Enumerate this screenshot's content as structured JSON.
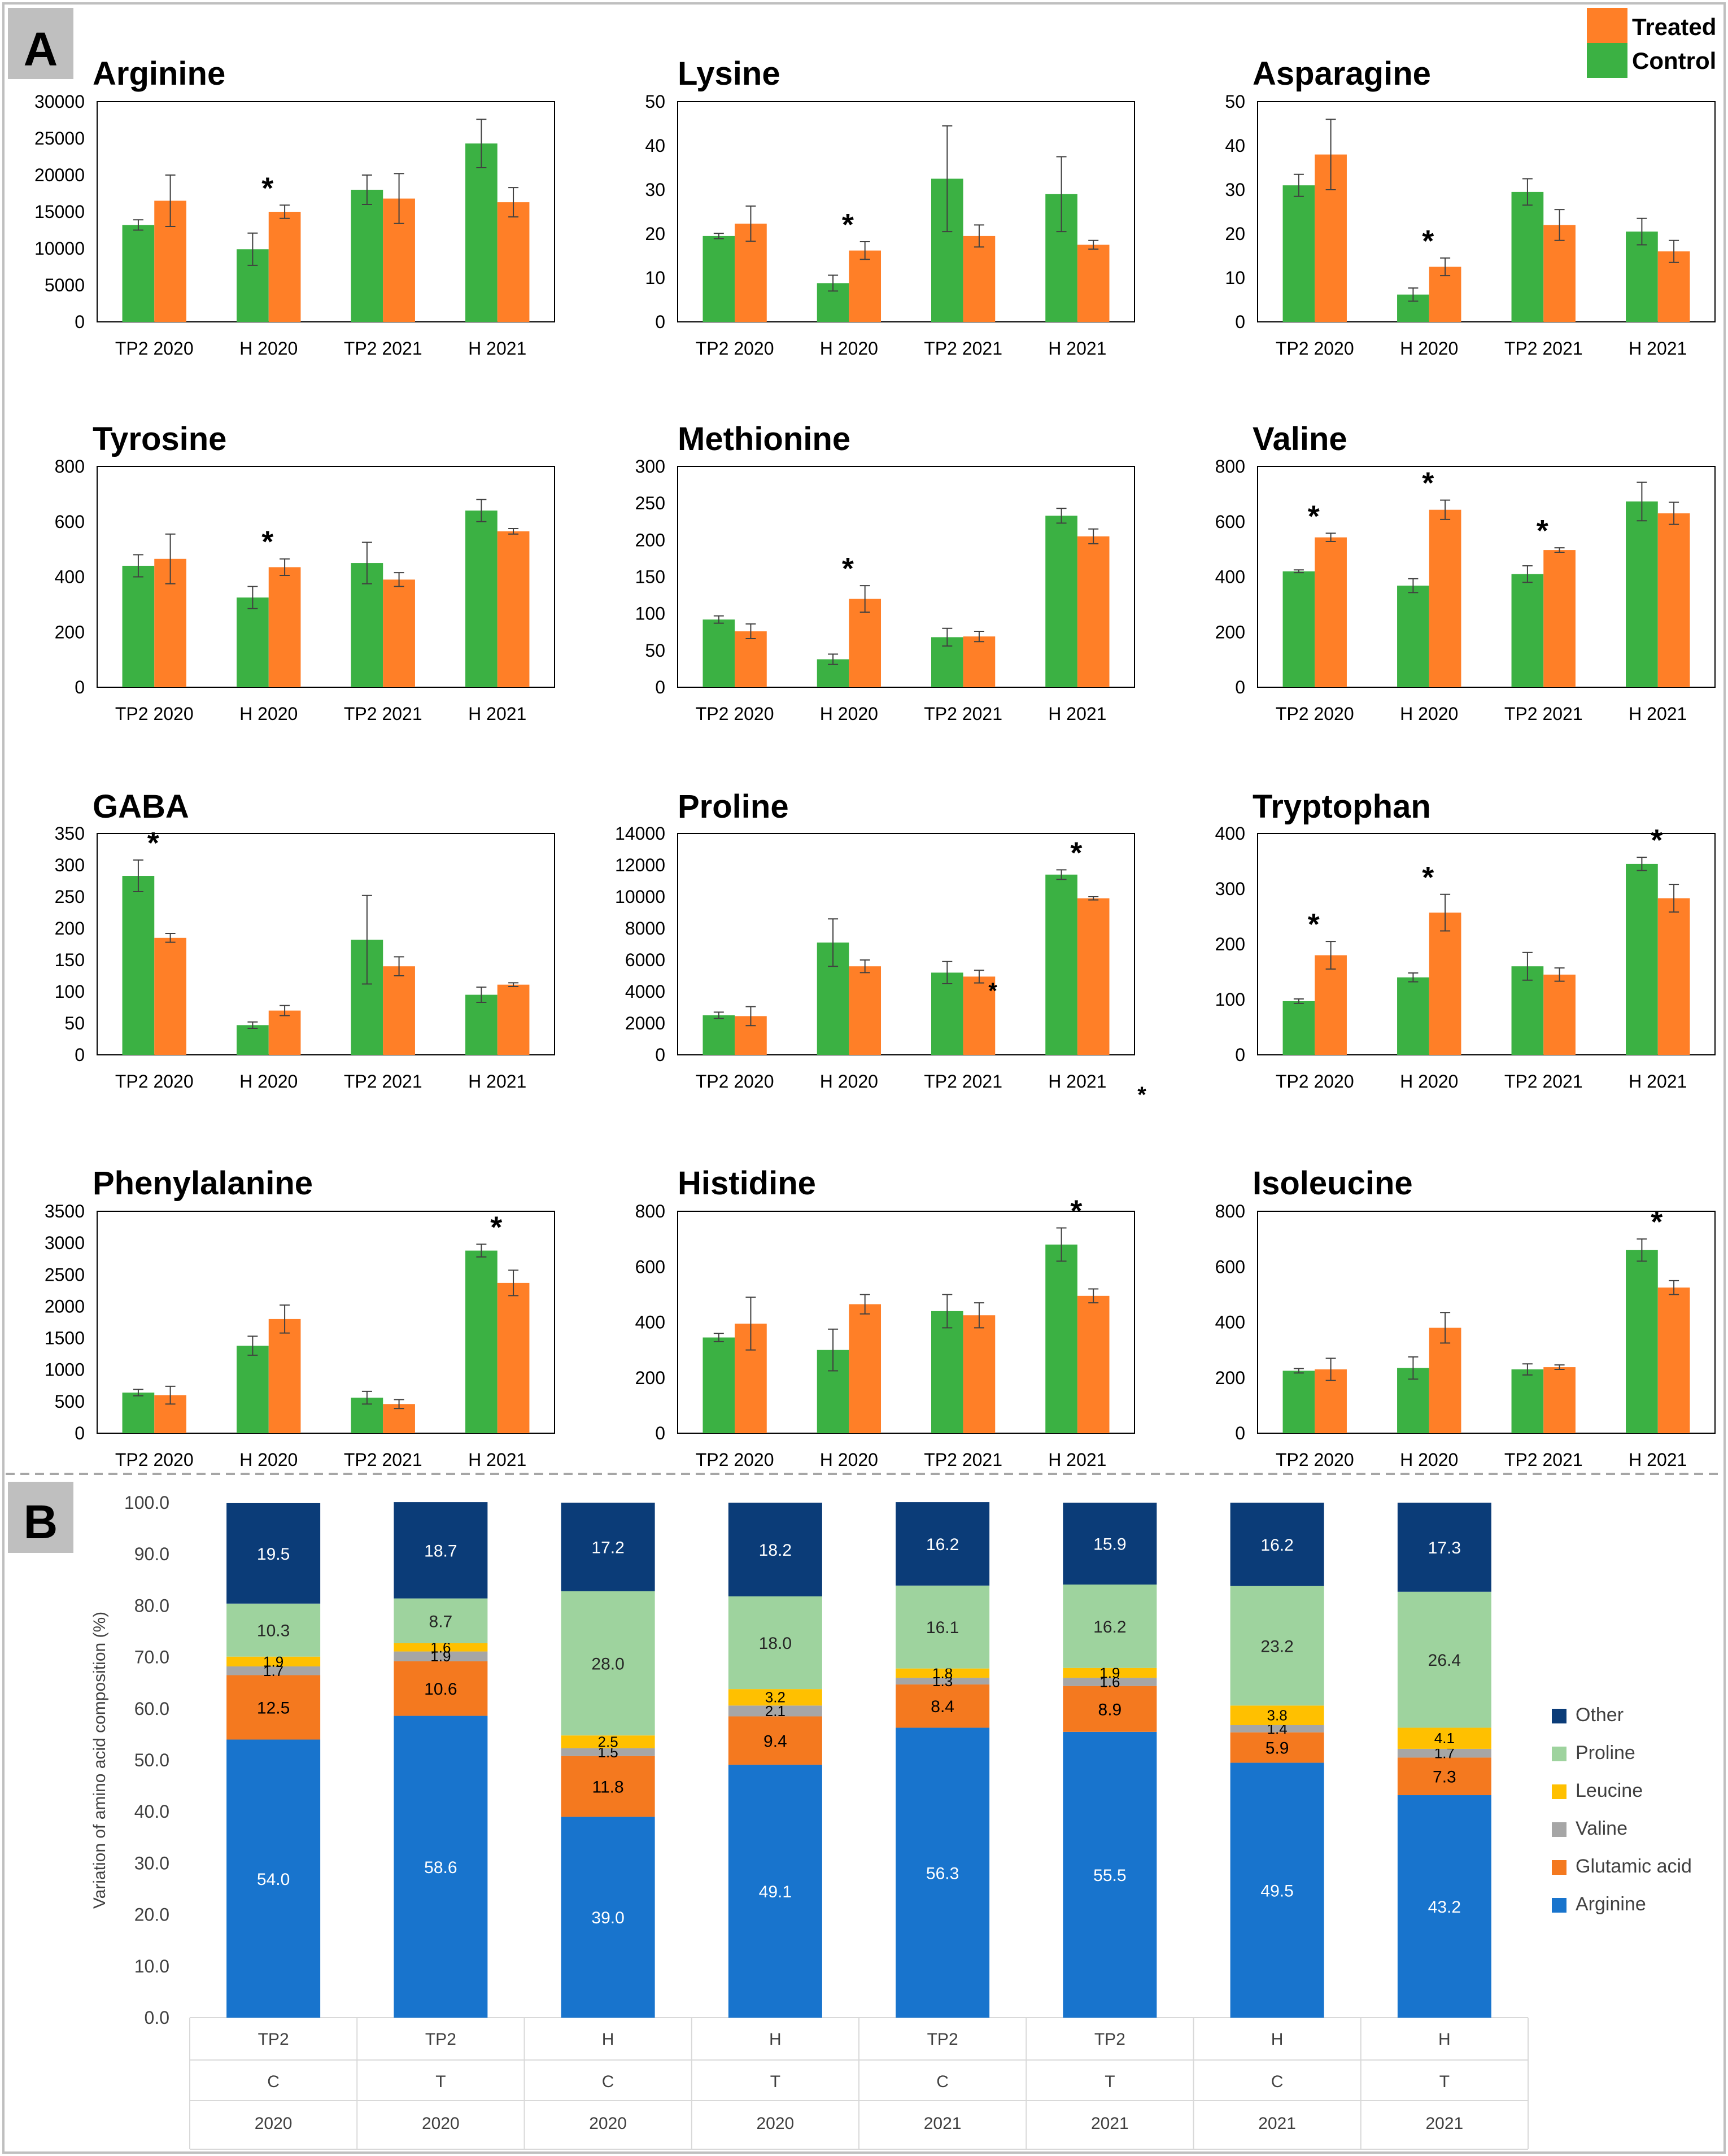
{
  "panel_labels": {
    "a": "A",
    "b": "B"
  },
  "legend_a": {
    "treated": "Treated",
    "control": "Control"
  },
  "colors": {
    "green": "#3BB143",
    "orange": "#FF7F27",
    "other": "#0B3C78",
    "proline": "#9ED39E",
    "leucine": "#FFC000",
    "valine": "#A6A6A6",
    "glutamic": "#F4791F",
    "arginine": "#1874CD"
  },
  "chart_data": [
    {
      "type": "bar",
      "title": "Arginine",
      "categories": [
        "TP2 2020",
        "H 2020",
        "TP2 2021",
        "H 2021"
      ],
      "ylim": [
        0,
        30000
      ],
      "yticks": [
        0,
        5000,
        10000,
        15000,
        20000,
        25000,
        30000
      ],
      "series": [
        {
          "name": "Control",
          "values": [
            13200,
            9900,
            18000,
            24300
          ],
          "errors": [
            700,
            2200,
            2000,
            3300
          ]
        },
        {
          "name": "Treated",
          "values": [
            16500,
            15000,
            16800,
            16300
          ],
          "errors": [
            3500,
            900,
            3400,
            2000
          ]
        }
      ],
      "significant": [
        false,
        true,
        false,
        false
      ],
      "sig_mark": "*"
    },
    {
      "type": "bar",
      "title": "Lysine",
      "categories": [
        "TP2 2020",
        "H 2020",
        "TP2 2021",
        "H 2021"
      ],
      "ylim": [
        0,
        50
      ],
      "yticks": [
        0,
        10,
        20,
        30,
        40,
        50
      ],
      "series": [
        {
          "name": "Control",
          "values": [
            19.5,
            8.8,
            32.5,
            29
          ],
          "errors": [
            0.6,
            1.8,
            12,
            8.5
          ]
        },
        {
          "name": "Treated",
          "values": [
            22.3,
            16.2,
            19.5,
            17.5
          ],
          "errors": [
            4,
            2,
            2.5,
            1
          ]
        }
      ],
      "significant": [
        false,
        true,
        false,
        false
      ],
      "sig_mark": "*"
    },
    {
      "type": "bar",
      "title": "Asparagine",
      "categories": [
        "TP2 2020",
        "H 2020",
        "TP2 2021",
        "H 2021"
      ],
      "ylim": [
        0,
        50
      ],
      "yticks": [
        0,
        10,
        20,
        30,
        40,
        50
      ],
      "series": [
        {
          "name": "Control",
          "values": [
            31,
            6.2,
            29.5,
            20.5
          ],
          "errors": [
            2.5,
            1.5,
            3,
            3
          ]
        },
        {
          "name": "Treated",
          "values": [
            38,
            12.5,
            22,
            16
          ],
          "errors": [
            8,
            2,
            3.5,
            2.5
          ]
        }
      ],
      "significant": [
        false,
        true,
        false,
        false
      ],
      "sig_mark": "*"
    },
    {
      "type": "bar",
      "title": "Tyrosine",
      "categories": [
        "TP2 2020",
        "H 2020",
        "TP2 2021",
        "H 2021"
      ],
      "ylim": [
        0,
        800
      ],
      "yticks": [
        0,
        200,
        400,
        600,
        800
      ],
      "series": [
        {
          "name": "Control",
          "values": [
            440,
            325,
            450,
            640
          ],
          "errors": [
            40,
            40,
            75,
            40
          ]
        },
        {
          "name": "Treated",
          "values": [
            465,
            435,
            390,
            565
          ],
          "errors": [
            90,
            30,
            25,
            10
          ]
        }
      ],
      "significant": [
        false,
        true,
        false,
        false
      ],
      "sig_mark": "*"
    },
    {
      "type": "bar",
      "title": "Methionine",
      "categories": [
        "TP2 2020",
        "H 2020",
        "TP2 2021",
        "H 2021"
      ],
      "ylim": [
        0,
        300
      ],
      "yticks": [
        0,
        50,
        100,
        150,
        200,
        250,
        300
      ],
      "series": [
        {
          "name": "Control",
          "values": [
            92,
            38,
            68,
            233
          ],
          "errors": [
            5,
            7,
            12,
            10
          ]
        },
        {
          "name": "Treated",
          "values": [
            76,
            120,
            69,
            205
          ],
          "errors": [
            10,
            18,
            7,
            10
          ]
        }
      ],
      "significant": [
        false,
        true,
        false,
        false
      ],
      "sig_mark": "*"
    },
    {
      "type": "bar",
      "title": "Valine",
      "categories": [
        "TP2 2020",
        "H 2020",
        "TP2 2021",
        "H 2021"
      ],
      "ylim": [
        0,
        800
      ],
      "yticks": [
        0,
        200,
        400,
        600,
        800
      ],
      "series": [
        {
          "name": "Control",
          "values": [
            420,
            368,
            410,
            673
          ],
          "errors": [
            5,
            25,
            30,
            70
          ]
        },
        {
          "name": "Treated",
          "values": [
            543,
            643,
            497,
            630
          ],
          "errors": [
            15,
            35,
            8,
            40
          ]
        }
      ],
      "significant": [
        true,
        true,
        true,
        false
      ],
      "sig_mark": "*"
    },
    {
      "type": "bar",
      "title": "GABA",
      "categories": [
        "TP2 2020",
        "H 2020",
        "TP2 2021",
        "H 2021"
      ],
      "ylim": [
        0,
        350
      ],
      "yticks": [
        0,
        50,
        100,
        150,
        200,
        250,
        300,
        350
      ],
      "series": [
        {
          "name": "Control",
          "values": [
            283,
            47,
            182,
            95
          ],
          "errors": [
            25,
            5,
            70,
            12
          ]
        },
        {
          "name": "Treated",
          "values": [
            185,
            70,
            140,
            111
          ],
          "errors": [
            7,
            8,
            15,
            3
          ]
        }
      ],
      "significant": [
        true,
        false,
        false,
        false
      ],
      "sig_mark": "*"
    },
    {
      "type": "bar",
      "title": "Proline",
      "categories": [
        "TP2 2020",
        "H 2020",
        "TP2 2021",
        "H 2021"
      ],
      "ylim": [
        0,
        14000
      ],
      "yticks": [
        0,
        2000,
        4000,
        6000,
        8000,
        10000,
        12000,
        14000
      ],
      "series": [
        {
          "name": "Control",
          "values": [
            2500,
            7100,
            5200,
            11400
          ],
          "errors": [
            200,
            1500,
            700,
            300
          ]
        },
        {
          "name": "Treated",
          "values": [
            2450,
            5600,
            4950,
            9900
          ],
          "errors": [
            600,
            400,
            400,
            100
          ]
        }
      ],
      "significant": [
        false,
        false,
        false,
        true
      ],
      "sig_mark": "*"
    },
    {
      "type": "bar",
      "title": "Tryptophan",
      "categories": [
        "TP2 2020",
        "H 2020",
        "TP2 2021",
        "H 2021"
      ],
      "ylim": [
        0,
        400
      ],
      "yticks": [
        0,
        100,
        200,
        300,
        400
      ],
      "series": [
        {
          "name": "Control",
          "values": [
            97,
            140,
            160,
            345
          ],
          "errors": [
            4,
            8,
            25,
            12
          ]
        },
        {
          "name": "Treated",
          "values": [
            180,
            257,
            145,
            283
          ],
          "errors": [
            25,
            33,
            12,
            25
          ]
        }
      ],
      "significant": [
        true,
        true,
        false,
        true
      ],
      "sig_mark": "*"
    },
    {
      "type": "bar",
      "title": "Phenylalanine",
      "categories": [
        "TP2 2020",
        "H 2020",
        "TP2 2021",
        "H 2021"
      ],
      "ylim": [
        0,
        3500
      ],
      "yticks": [
        0,
        500,
        1000,
        1500,
        2000,
        2500,
        3000,
        3500
      ],
      "series": [
        {
          "name": "Control",
          "values": [
            640,
            1380,
            560,
            2880
          ],
          "errors": [
            50,
            150,
            100,
            100
          ]
        },
        {
          "name": "Treated",
          "values": [
            600,
            1800,
            460,
            2370
          ],
          "errors": [
            140,
            220,
            70,
            200
          ]
        }
      ],
      "significant": [
        false,
        false,
        false,
        true
      ],
      "sig_mark": "*"
    },
    {
      "type": "bar",
      "title": "Histidine",
      "categories": [
        "TP2 2020",
        "H 2020",
        "TP2 2021",
        "H 2021"
      ],
      "ylim": [
        0,
        800
      ],
      "yticks": [
        0,
        200,
        400,
        600,
        800
      ],
      "series": [
        {
          "name": "Control",
          "values": [
            345,
            300,
            440,
            680
          ],
          "errors": [
            15,
            75,
            60,
            60
          ]
        },
        {
          "name": "Treated",
          "values": [
            395,
            465,
            425,
            495
          ],
          "errors": [
            95,
            35,
            45,
            25
          ]
        }
      ],
      "significant": [
        false,
        false,
        false,
        true
      ],
      "sig_mark": "*"
    },
    {
      "type": "bar",
      "title": "Isoleucine",
      "categories": [
        "TP2 2020",
        "H 2020",
        "TP2 2021",
        "H 2021"
      ],
      "ylim": [
        0,
        800
      ],
      "yticks": [
        0,
        200,
        400,
        600,
        800
      ],
      "series": [
        {
          "name": "Control",
          "values": [
            225,
            235,
            230,
            660
          ],
          "errors": [
            8,
            40,
            20,
            40
          ]
        },
        {
          "name": "Treated",
          "values": [
            230,
            380,
            238,
            525
          ],
          "errors": [
            40,
            55,
            8,
            25
          ]
        }
      ],
      "significant": [
        false,
        false,
        false,
        true
      ],
      "sig_mark": "*"
    },
    {
      "type": "stacked-bar",
      "title": "",
      "ylabel": "Variation of amino acid composition (%)",
      "ylim": [
        0,
        100
      ],
      "ytick_labels": [
        "0.0",
        "10.0",
        "20.0",
        "30.0",
        "40.0",
        "50.0",
        "60.0",
        "70.0",
        "80.0",
        "90.0",
        "100.0"
      ],
      "categories": [
        [
          "TP2",
          "C",
          "2020"
        ],
        [
          "TP2",
          "T",
          "2020"
        ],
        [
          "H",
          "C",
          "2020"
        ],
        [
          "H",
          "T",
          "2020"
        ],
        [
          "TP2",
          "C",
          "2021"
        ],
        [
          "TP2",
          "T",
          "2021"
        ],
        [
          "H",
          "C",
          "2021"
        ],
        [
          "H",
          "T",
          "2021"
        ]
      ],
      "series": [
        {
          "name": "Arginine",
          "values": [
            54.0,
            58.6,
            39.0,
            49.1,
            56.3,
            55.5,
            49.5,
            43.2
          ],
          "labels": [
            "54.0",
            "58.6",
            "39.0",
            "49.1",
            "56.3",
            "55.5",
            "49.5",
            "43.2"
          ]
        },
        {
          "name": "Glutamic acid",
          "values": [
            12.5,
            10.6,
            11.8,
            9.4,
            8.4,
            8.9,
            5.9,
            7.3
          ],
          "labels": [
            "12.5",
            "10.6",
            "11.8",
            "9.4",
            "8.4",
            "8.9",
            "5.9",
            "7.3"
          ]
        },
        {
          "name": "Valine",
          "values": [
            1.7,
            1.9,
            1.5,
            2.1,
            1.3,
            1.6,
            1.4,
            1.7
          ],
          "labels": [
            "1.7",
            "1.9",
            "1.5",
            "2.1",
            "1.3",
            "1.6",
            "1.4",
            "1.7"
          ]
        },
        {
          "name": "Leucine",
          "values": [
            1.9,
            1.6,
            2.5,
            3.2,
            1.8,
            1.9,
            3.8,
            4.1
          ],
          "labels": [
            "1.9",
            "1.6",
            "2.5",
            "3.2",
            "1.8",
            "1.9",
            "3.8",
            "4.1"
          ]
        },
        {
          "name": "Proline",
          "values": [
            10.3,
            8.7,
            28.0,
            18.0,
            16.1,
            16.2,
            23.2,
            26.4
          ],
          "labels": [
            "10.3",
            "8.7",
            "28.0",
            "18.0",
            "16.1",
            "16.2",
            "23.2",
            "26.4"
          ]
        },
        {
          "name": "Other",
          "values": [
            19.5,
            18.7,
            17.2,
            18.2,
            16.2,
            15.9,
            16.2,
            17.3
          ],
          "labels": [
            "19.5",
            "18.7",
            "17.2",
            "18.2",
            "16.2",
            "15.9",
            "16.2",
            "17.3"
          ]
        }
      ],
      "legend_order": [
        "Other",
        "Proline",
        "Leucine",
        "Valine",
        "Glutamic acid",
        "Arginine"
      ]
    }
  ]
}
